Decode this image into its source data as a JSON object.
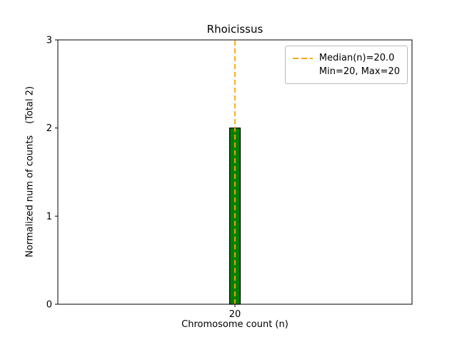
{
  "figure": {
    "background": "#ffffff"
  },
  "chart_data": {
    "type": "bar",
    "title": "Rhoicissus",
    "xlabel": "Chromosome count (n)",
    "ylabel": "Normalized num of counts",
    "ylabel_note": "(Total 2)",
    "categories": [
      20
    ],
    "values": [
      2
    ],
    "total_counts": 2,
    "bar_color": "#008000",
    "bar_edge_color": "#000000",
    "bar_width_data": 0.3,
    "xlim": [
      15,
      25
    ],
    "ylim": [
      0,
      3
    ],
    "xticks": [
      20
    ],
    "yticks": [
      0,
      1,
      2,
      3
    ],
    "grid": false,
    "median_line": {
      "x": 20,
      "color": "#ffa500",
      "style": "dashed"
    },
    "stats": {
      "median": 20.0,
      "min": 20,
      "max": 20
    },
    "legend": {
      "position": "upper right",
      "items": [
        {
          "label": "Median(n)=20.0",
          "marker": "dashed-line",
          "color": "#ffa500"
        },
        {
          "label": "Min=20, Max=20",
          "marker": "none",
          "color": ""
        }
      ]
    }
  }
}
